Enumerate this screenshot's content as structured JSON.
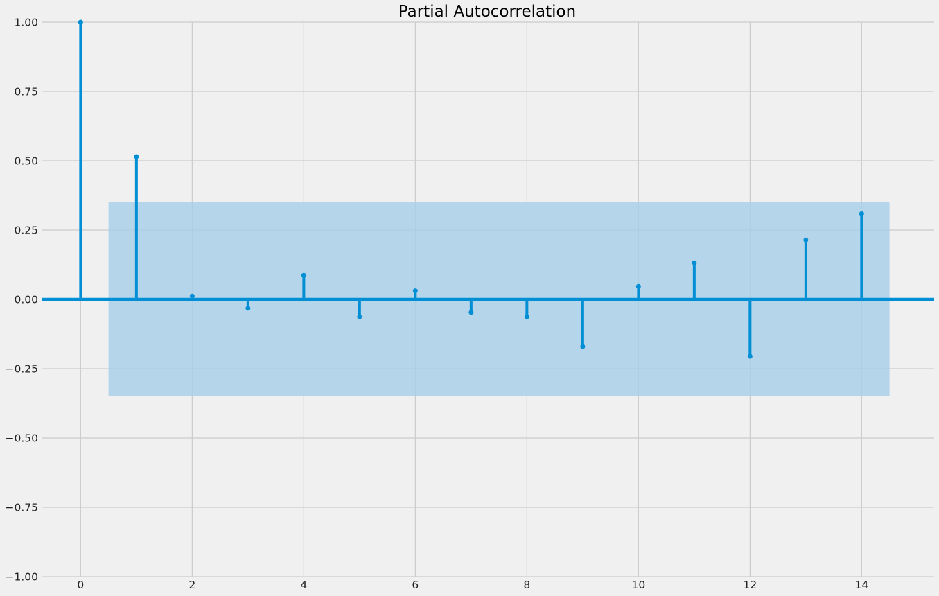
{
  "chart_data": {
    "type": "stem",
    "title": "Partial Autocorrelation",
    "xlabel": "",
    "ylabel": "",
    "x": [
      0,
      1,
      2,
      3,
      4,
      5,
      6,
      7,
      8,
      9,
      10,
      11,
      12,
      13,
      14
    ],
    "values": [
      1.0,
      0.515,
      0.012,
      -0.032,
      0.087,
      -0.063,
      0.031,
      -0.047,
      -0.063,
      -0.17,
      0.047,
      0.132,
      -0.205,
      0.214,
      0.309
    ],
    "confidence_band": {
      "lower": -0.35,
      "upper": 0.35,
      "x_range": [
        0.5,
        14.5
      ]
    },
    "xlim": [
      -0.7,
      15.3
    ],
    "ylim": [
      -1.0,
      1.0
    ],
    "xticks": [
      0,
      2,
      4,
      6,
      8,
      10,
      12,
      14
    ],
    "yticks": [
      -1.0,
      -0.75,
      -0.5,
      -0.25,
      0.0,
      0.25,
      0.5,
      0.75,
      1.0
    ],
    "ytick_labels": [
      "−1.00",
      "−0.75",
      "−0.50",
      "−0.25",
      "0.00",
      "0.25",
      "0.50",
      "0.75",
      "1.00"
    ],
    "grid": true,
    "colors": {
      "stem": "#008fd5",
      "band": "#a6cee8",
      "background": "#f0f0f0",
      "grid": "#cbcbcb"
    }
  }
}
